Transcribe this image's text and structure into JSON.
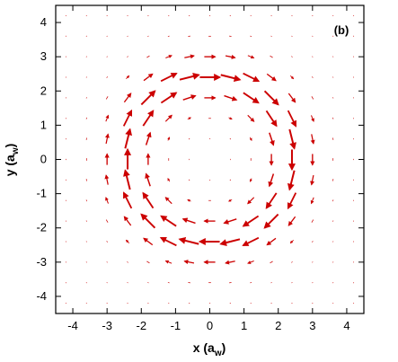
{
  "chart_data": {
    "type": "vector-field",
    "panel_label": "(b)",
    "xlabel": "x (a",
    "xlabel_sub": "w",
    "xlabel_end": ")",
    "ylabel": "y (a",
    "ylabel_sub": "w",
    "ylabel_end": ")",
    "xlim": [
      -4.5,
      4.5
    ],
    "ylim": [
      -4.5,
      4.5
    ],
    "x_ticks": [
      -4,
      -3,
      -2,
      -1,
      0,
      1,
      2,
      3,
      4
    ],
    "y_ticks": [
      -4,
      -3,
      -2,
      -1,
      0,
      1,
      2,
      3,
      4
    ],
    "x_tick_labels": [
      "-4",
      "-3",
      "-2",
      "-1",
      "0",
      "1",
      "2",
      "3",
      "4"
    ],
    "y_tick_labels": [
      "-4",
      "-3",
      "-2",
      "-1",
      "0",
      "1",
      "2",
      "3",
      "4"
    ],
    "grid": false,
    "arrow_color": "#cc0000",
    "field": {
      "description": "clockwise circulating flow, strongest on a ring",
      "grid_spacing": 0.6,
      "grid_extent": [
        -4.2,
        4.2
      ],
      "ring_radius": 2.4,
      "ring_width": 0.75,
      "rotation": "clockwise"
    }
  }
}
